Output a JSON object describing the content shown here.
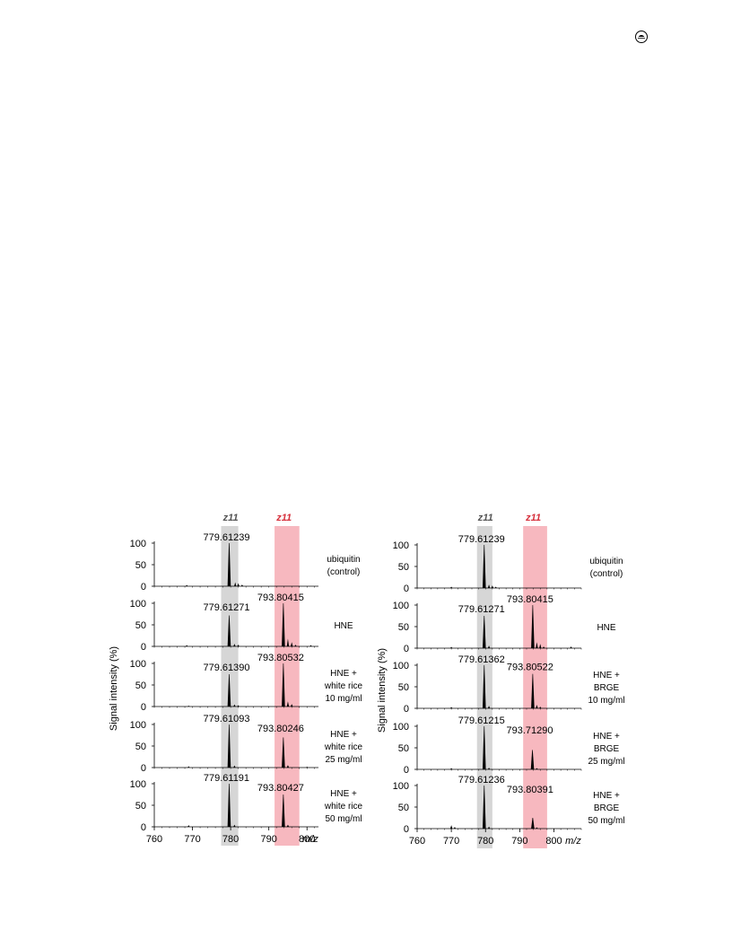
{
  "corner_icon": "circled-lamp-icon",
  "colors": {
    "grey_band": "#d6d6d6",
    "red_band": "#f7b8bf",
    "red_label": "#d6303c",
    "grey_label": "#555555",
    "trace": "#000000"
  },
  "chart_data": [
    {
      "type": "line",
      "panel": "left",
      "xlim": [
        760,
        803
      ],
      "ylim": [
        0,
        100
      ],
      "x_ticks": [
        760,
        770,
        780,
        790,
        800
      ],
      "y_ticks": [
        0,
        50,
        100
      ],
      "xlabel": "m/z",
      "ylabel": "Signal intensity (%)",
      "band_labels": [
        {
          "text": "z11",
          "x_center": 780,
          "x_range": [
            777.5,
            782
          ]
        },
        {
          "text": "z11",
          "x_center": 794,
          "x_range": [
            791.5,
            798
          ]
        }
      ],
      "spectra": [
        {
          "condition": [
            "ubiquitin",
            "(control)"
          ],
          "peaks": [
            {
              "mz": 779.61239,
              "label": "779.61239",
              "intensity": 100
            }
          ],
          "minor": [
            [
              768.5,
              3
            ],
            [
              781.2,
              9
            ],
            [
              782,
              7
            ],
            [
              783,
              4
            ]
          ]
        },
        {
          "condition": [
            "HNE"
          ],
          "peaks": [
            {
              "mz": 779.61271,
              "label": "779.61271",
              "intensity": 72
            },
            {
              "mz": 793.80415,
              "label": "793.80415",
              "intensity": 100
            }
          ],
          "minor": [
            [
              768.5,
              3
            ],
            [
              781,
              6
            ],
            [
              782,
              4
            ],
            [
              795,
              18
            ],
            [
              796,
              10
            ],
            [
              797,
              4
            ],
            [
              801,
              3
            ]
          ]
        },
        {
          "condition": [
            "HNE +",
            "white rice",
            "10 mg/ml"
          ],
          "peaks": [
            {
              "mz": 779.6139,
              "label": "779.61390",
              "intensity": 75
            },
            {
              "mz": 793.80532,
              "label": "793.80532",
              "intensity": 100
            }
          ],
          "minor": [
            [
              769,
              2
            ],
            [
              781,
              5
            ],
            [
              782,
              3
            ],
            [
              795,
              12
            ],
            [
              796,
              6
            ]
          ]
        },
        {
          "condition": [
            "HNE +",
            "white rice",
            "25 mg/ml"
          ],
          "peaks": [
            {
              "mz": 779.61093,
              "label": "779.61093",
              "intensity": 100
            },
            {
              "mz": 793.80246,
              "label": "793.80246",
              "intensity": 70
            }
          ],
          "minor": [
            [
              769,
              3
            ],
            [
              781,
              5
            ],
            [
              795,
              6
            ],
            [
              800,
              2
            ]
          ]
        },
        {
          "condition": [
            "HNE +",
            "white rice",
            "50 mg/ml"
          ],
          "peaks": [
            {
              "mz": 779.61191,
              "label": "779.61191",
              "intensity": 100
            },
            {
              "mz": 793.80427,
              "label": "793.80427",
              "intensity": 75
            }
          ],
          "minor": [
            [
              769,
              4
            ],
            [
              781,
              5
            ],
            [
              795,
              5
            ]
          ]
        }
      ]
    },
    {
      "type": "line",
      "panel": "right",
      "xlim": [
        760,
        808
      ],
      "ylim": [
        0,
        100
      ],
      "x_ticks": [
        760,
        770,
        780,
        790,
        800
      ],
      "y_ticks": [
        0,
        50,
        100
      ],
      "xlabel": "m/z",
      "ylabel": "Signal intensity (%)",
      "band_labels": [
        {
          "text": "z11",
          "x_center": 780,
          "x_range": [
            777.5,
            782
          ]
        },
        {
          "text": "z11",
          "x_center": 794,
          "x_range": [
            791,
            798
          ]
        }
      ],
      "spectra": [
        {
          "condition": [
            "ubiquitin",
            "(control)"
          ],
          "peaks": [
            {
              "mz": 779.61239,
              "label": "779.61239",
              "intensity": 100
            }
          ],
          "minor": [
            [
              770,
              3
            ],
            [
              781,
              8
            ],
            [
              782,
              6
            ],
            [
              783,
              3
            ]
          ]
        },
        {
          "condition": [
            "HNE"
          ],
          "peaks": [
            {
              "mz": 779.61271,
              "label": "779.61271",
              "intensity": 75
            },
            {
              "mz": 793.80415,
              "label": "793.80415",
              "intensity": 100
            }
          ],
          "minor": [
            [
              770,
              3
            ],
            [
              781,
              6
            ],
            [
              795,
              14
            ],
            [
              796,
              10
            ],
            [
              797,
              4
            ],
            [
              805,
              4
            ]
          ]
        },
        {
          "condition": [
            "HNE +",
            "BRGE",
            "10 mg/ml"
          ],
          "peaks": [
            {
              "mz": 779.61362,
              "label": "779.61362",
              "intensity": 100
            },
            {
              "mz": 793.80522,
              "label": "793.80522",
              "intensity": 80
            }
          ],
          "minor": [
            [
              770,
              3
            ],
            [
              781,
              6
            ],
            [
              795,
              8
            ],
            [
              796,
              4
            ]
          ]
        },
        {
          "condition": [
            "HNE +",
            "BRGE",
            "25 mg/ml"
          ],
          "peaks": [
            {
              "mz": 779.61215,
              "label": "779.61215",
              "intensity": 100
            },
            {
              "mz": 793.7129,
              "label": "793.71290",
              "intensity": 45
            }
          ],
          "minor": [
            [
              770,
              3
            ],
            [
              781,
              4
            ],
            [
              795,
              3
            ]
          ]
        },
        {
          "condition": [
            "HNE +",
            "BRGE",
            "50 mg/ml"
          ],
          "peaks": [
            {
              "mz": 779.61236,
              "label": "779.61236",
              "intensity": 100
            },
            {
              "mz": 780,
              "label": "",
              "intensity": 0
            },
            {
              "mz": 793.80391,
              "label": "793.80391",
              "intensity": 25
            }
          ],
          "minor": [
            [
              770,
              8
            ],
            [
              771,
              4
            ],
            [
              781,
              5
            ],
            [
              795,
              3
            ]
          ]
        }
      ]
    }
  ]
}
